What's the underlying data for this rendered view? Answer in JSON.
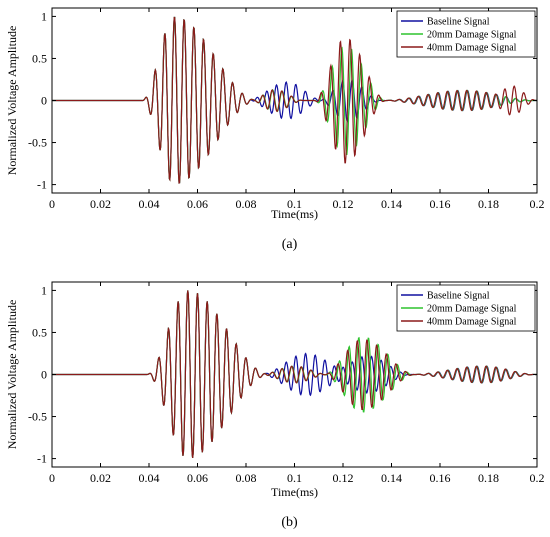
{
  "chart_data": [
    {
      "type": "line",
      "panel_label": "(a)",
      "xlabel": "Time(ms)",
      "ylabel": "Normalized Voltage Amplitude",
      "xlim": [
        0,
        0.2
      ],
      "ylim": [
        -1.1,
        1.1
      ],
      "xticks": [
        0,
        0.02,
        0.04,
        0.06,
        0.08,
        0.1,
        0.12,
        0.14,
        0.16,
        0.18,
        0.2
      ],
      "xtick_labels": [
        "0",
        "0.02",
        "0.04",
        "0.06",
        "0.08",
        "0.1",
        "0.12",
        "0.14",
        "0.16",
        "0.18",
        "0.2"
      ],
      "yticks": [
        -1,
        -0.5,
        0,
        0.5,
        1
      ],
      "ytick_labels": [
        "-1",
        "-0.5",
        "0",
        "0.5",
        "1"
      ],
      "grid": false,
      "legend": "top-right",
      "signal_model": {
        "sample_step": 0.0002,
        "frequency_khz": 250,
        "packets": [
          {
            "series": [
              0,
              1,
              2
            ],
            "start": 0.037,
            "peak": 0.0505,
            "end": 0.085,
            "amplitude": 1.0
          },
          {
            "series": [
              0
            ],
            "start": 0.08,
            "peak": 0.097,
            "end": 0.112,
            "amplitude": 0.22
          },
          {
            "series": [
              1,
              2
            ],
            "start": 0.082,
            "peak": 0.092,
            "end": 0.104,
            "amplitude": 0.13
          },
          {
            "series": [
              1
            ],
            "start": 0.108,
            "peak": 0.121,
            "end": 0.138,
            "amplitude": 0.65
          },
          {
            "series": [
              2
            ],
            "start": 0.108,
            "peak": 0.121,
            "end": 0.138,
            "amplitude": 0.75
          },
          {
            "series": [
              0
            ],
            "start": 0.11,
            "peak": 0.122,
            "end": 0.136,
            "amplitude": 0.25
          },
          {
            "series": [
              0,
              1,
              2
            ],
            "start": 0.136,
            "peak": 0.17,
            "end": 0.2,
            "amplitude": 0.12
          },
          {
            "series": [
              2
            ],
            "start": 0.182,
            "peak": 0.19,
            "end": 0.2,
            "amplitude": 0.15
          }
        ]
      },
      "series": [
        {
          "name": "Baseline Signal",
          "color": "#1010a0"
        },
        {
          "name": "20mm Damage Signal",
          "color": "#2fc42f"
        },
        {
          "name": "40mm Damage Signal",
          "color": "#8b1a1a"
        }
      ]
    },
    {
      "type": "line",
      "panel_label": "(b)",
      "xlabel": "Time(ms)",
      "ylabel": "Normalized Voltage Amplitude",
      "xlim": [
        0,
        0.2
      ],
      "ylim": [
        -1.1,
        1.1
      ],
      "xticks": [
        0,
        0.02,
        0.04,
        0.06,
        0.08,
        0.1,
        0.12,
        0.14,
        0.16,
        0.18,
        0.2
      ],
      "xtick_labels": [
        "0",
        "0.02",
        "0.04",
        "0.06",
        "0.08",
        "0.1",
        "0.12",
        "0.14",
        "0.16",
        "0.18",
        "0.2"
      ],
      "yticks": [
        -1,
        -0.5,
        0,
        0.5,
        1
      ],
      "ytick_labels": [
        "-1",
        "-0.5",
        "0",
        "0.5",
        "1"
      ],
      "grid": false,
      "legend": "top-right",
      "signal_model": {
        "sample_step": 0.0002,
        "frequency_khz": 250,
        "packets": [
          {
            "series": [
              0,
              1,
              2
            ],
            "start": 0.039,
            "peak": 0.056,
            "end": 0.09,
            "amplitude": 1.0
          },
          {
            "series": [
              0
            ],
            "start": 0.086,
            "peak": 0.105,
            "end": 0.125,
            "amplitude": 0.25
          },
          {
            "series": [
              1,
              2
            ],
            "start": 0.086,
            "peak": 0.1,
            "end": 0.114,
            "amplitude": 0.1
          },
          {
            "series": [
              1
            ],
            "start": 0.112,
            "peak": 0.128,
            "end": 0.15,
            "amplitude": 0.45
          },
          {
            "series": [
              2
            ],
            "start": 0.112,
            "peak": 0.128,
            "end": 0.15,
            "amplitude": 0.42
          },
          {
            "series": [
              0
            ],
            "start": 0.114,
            "peak": 0.13,
            "end": 0.148,
            "amplitude": 0.22
          },
          {
            "series": [
              0,
              1,
              2
            ],
            "start": 0.148,
            "peak": 0.178,
            "end": 0.2,
            "amplitude": 0.1
          }
        ]
      },
      "series": [
        {
          "name": "Baseline Signal",
          "color": "#1010a0"
        },
        {
          "name": "20mm Damage Signal",
          "color": "#2fc42f"
        },
        {
          "name": "40mm Damage Signal",
          "color": "#8b1a1a"
        }
      ]
    }
  ]
}
